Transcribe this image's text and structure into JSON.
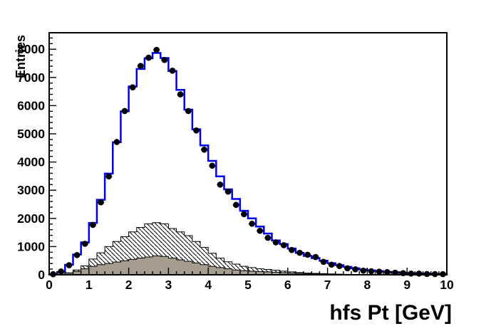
{
  "page": {
    "background_color": "#ffffff",
    "description": "ROOT-style physics histogram plot"
  },
  "chart_data": {
    "type": "bar",
    "subtype": "root-histogram-overlay",
    "title": "",
    "xlabel": "hfs Pt [GeV]",
    "ylabel": "Entries",
    "xlim": [
      0,
      10
    ],
    "ylim": [
      0,
      8586
    ],
    "grid": "off",
    "legend": "none",
    "bin_width": 0.2,
    "x_major_ticks": [
      0,
      1,
      2,
      3,
      4,
      5,
      6,
      7,
      8,
      9,
      10
    ],
    "y_major_ticks": [
      0,
      1000,
      2000,
      3000,
      4000,
      5000,
      6000,
      7000,
      8000
    ],
    "x_minor_step": 0.2,
    "y_minor_step": 200,
    "bin_centers": [
      0.1,
      0.3,
      0.5,
      0.7,
      0.9,
      1.1,
      1.3,
      1.5,
      1.7,
      1.9,
      2.1,
      2.3,
      2.5,
      2.7,
      2.9,
      3.1,
      3.3,
      3.5,
      3.7,
      3.9,
      4.1,
      4.3,
      4.5,
      4.7,
      4.9,
      5.1,
      5.3,
      5.5,
      5.7,
      5.9,
      6.1,
      6.3,
      6.5,
      6.7,
      6.9,
      7.1,
      7.3,
      7.5,
      7.7,
      7.9,
      8.1,
      8.3,
      8.5,
      8.7,
      8.9,
      9.1,
      9.3,
      9.5,
      9.7,
      9.9
    ],
    "series": [
      {
        "name": "hatched-background-histogram",
        "style": "filled-histogram",
        "fill": "white-with-black-diagonal-hatch",
        "outline_color": "#000000",
        "values": [
          0,
          20,
          70,
          170,
          320,
          560,
          780,
          1000,
          1180,
          1350,
          1520,
          1680,
          1810,
          1850,
          1810,
          1640,
          1520,
          1390,
          1180,
          970,
          760,
          590,
          460,
          380,
          300,
          255,
          210,
          190,
          160,
          130,
          105,
          80,
          60,
          50,
          40,
          30,
          22,
          16,
          10,
          6,
          4,
          3,
          2,
          1,
          1,
          1,
          0,
          0,
          0,
          0
        ]
      },
      {
        "name": "gray-background-histogram",
        "style": "filled-histogram",
        "fill": "#a79d8e",
        "outline_color": "#000000",
        "values": [
          0,
          15,
          60,
          120,
          210,
          300,
          360,
          400,
          450,
          500,
          545,
          590,
          630,
          670,
          650,
          590,
          530,
          480,
          420,
          360,
          300,
          255,
          210,
          170,
          145,
          125,
          115,
          105,
          90,
          75,
          60,
          50,
          40,
          32,
          25,
          20,
          15,
          12,
          9,
          7,
          5,
          4,
          3,
          3,
          2,
          2,
          1,
          1,
          1,
          0
        ]
      },
      {
        "name": "total-prediction-histogram",
        "style": "step-histogram",
        "line_color": "#0000f0",
        "line_width": 2.5,
        "values": [
          15,
          90,
          355,
          720,
          1150,
          1840,
          2660,
          3590,
          4700,
          5800,
          6680,
          7300,
          7680,
          7870,
          7690,
          7230,
          6560,
          5860,
          5160,
          4590,
          4040,
          3490,
          3030,
          2690,
          2270,
          2000,
          1710,
          1460,
          1220,
          1090,
          930,
          780,
          670,
          590,
          500,
          410,
          340,
          280,
          230,
          185,
          155,
          130,
          105,
          88,
          72,
          58,
          48,
          40,
          32,
          27
        ]
      },
      {
        "name": "data-points",
        "style": "scatter-with-errorbars",
        "marker": "filled-circle",
        "marker_color": "#000000",
        "values": [
          20,
          120,
          340,
          700,
          1100,
          1770,
          2570,
          3490,
          4710,
          5810,
          6650,
          7410,
          7700,
          7980,
          7620,
          7240,
          6400,
          5810,
          5120,
          4440,
          3870,
          3200,
          2950,
          2480,
          2150,
          1810,
          1560,
          1310,
          1150,
          1050,
          880,
          780,
          710,
          630,
          460,
          360,
          310,
          230,
          195,
          145,
          125,
          110,
          93,
          76,
          58,
          42,
          42,
          28,
          25,
          22
        ]
      }
    ],
    "colors": {
      "frame": "#000000",
      "prediction_line": "#0000f0",
      "gray_fill": "#a79d8e",
      "background": "#ffffff"
    }
  }
}
